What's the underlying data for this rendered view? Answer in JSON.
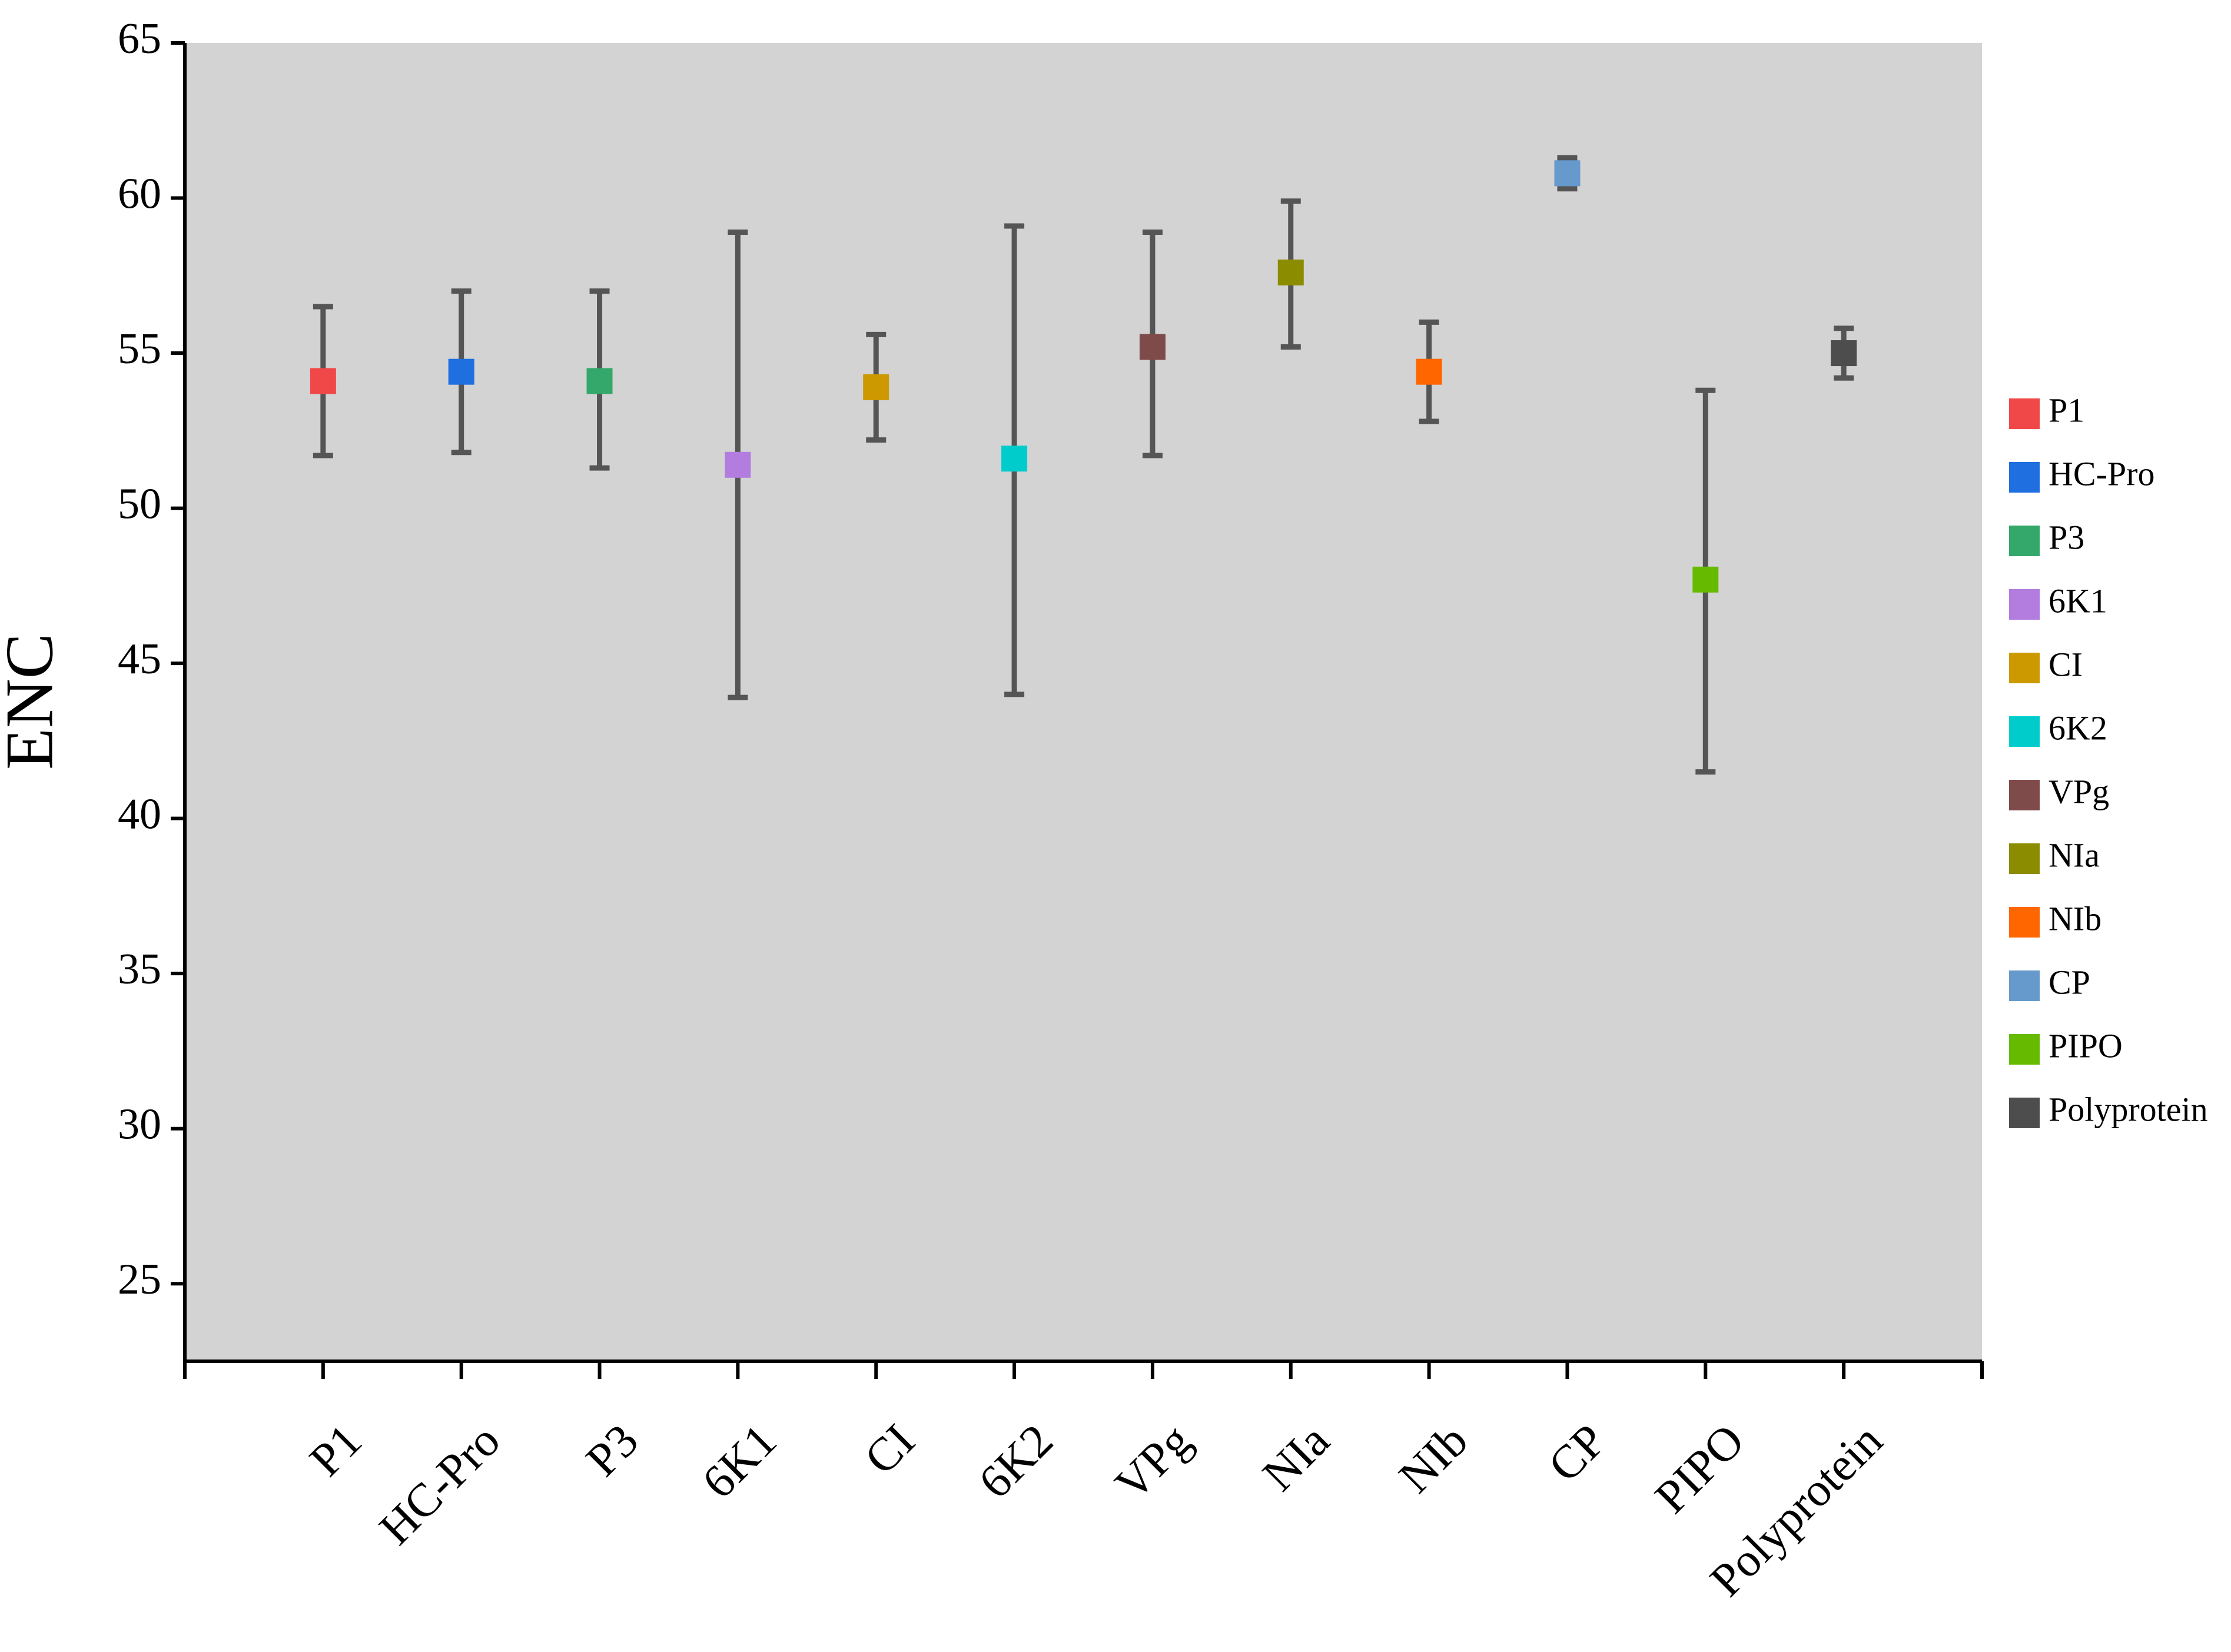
{
  "chart_data": {
    "type": "errorbar",
    "y_label": "ENC",
    "categories": [
      "P1",
      "HC-Pro",
      "P3",
      "6K1",
      "CI",
      "6K2",
      "VPg",
      "NIa",
      "NIb",
      "CP",
      "PIPO",
      "Polyprotein"
    ],
    "values": [
      54.1,
      54.4,
      54.1,
      51.4,
      53.9,
      51.6,
      55.2,
      57.6,
      54.4,
      60.8,
      47.7,
      55.0
    ],
    "y_low": [
      51.7,
      51.8,
      51.3,
      43.9,
      52.2,
      44.0,
      51.7,
      55.2,
      52.8,
      60.3,
      41.5,
      54.2
    ],
    "y_high": [
      56.5,
      57.0,
      57.0,
      58.9,
      55.6,
      59.1,
      58.9,
      59.9,
      56.0,
      61.3,
      53.8,
      55.8
    ],
    "colors": [
      "#f04848",
      "#1f6fe0",
      "#33a86a",
      "#b27ddf",
      "#cc9900",
      "#00cccc",
      "#7f4a4a",
      "#8c8c00",
      "#ff6600",
      "#6699cc",
      "#66bb00",
      "#4d4d4d"
    ],
    "ylim": [
      22.5,
      65
    ],
    "yticks": [
      25,
      30,
      35,
      40,
      45,
      50,
      55,
      60,
      65
    ],
    "legend": "right"
  }
}
